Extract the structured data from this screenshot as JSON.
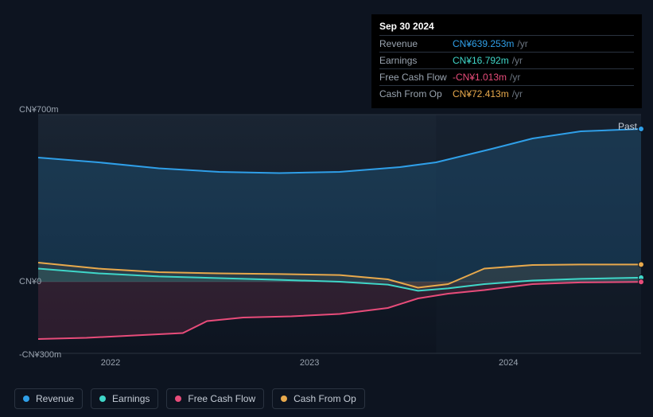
{
  "tooltip": {
    "date": "Sep 30 2024",
    "rows": [
      {
        "label": "Revenue",
        "value": "CN¥639.253m",
        "unit": "/yr",
        "color": "#2f9fe8"
      },
      {
        "label": "Earnings",
        "value": "CN¥16.792m",
        "unit": "/yr",
        "color": "#3fd6c8"
      },
      {
        "label": "Free Cash Flow",
        "value": "-CN¥1.013m",
        "unit": "/yr",
        "color": "#e84c7a"
      },
      {
        "label": "Cash From Op",
        "value": "CN¥72.413m",
        "unit": "/yr",
        "color": "#e8a94c"
      }
    ]
  },
  "chart": {
    "type": "area",
    "background_color": "#0d1420",
    "plot_bg_gradient_top": "#1a2533",
    "plot_bg_gradient_bottom": "#0d1420",
    "grid_color": "#2a3340",
    "x_axis": {
      "ticks": [
        {
          "label": "2022",
          "pos": 0.12
        },
        {
          "label": "2023",
          "pos": 0.45
        },
        {
          "label": "2024",
          "pos": 0.78
        }
      ]
    },
    "y_axis": {
      "ticks": [
        {
          "label": "CN¥700m",
          "value": 700
        },
        {
          "label": "CN¥0",
          "value": 0
        },
        {
          "label": "-CN¥300m",
          "value": -300
        }
      ],
      "min": -300,
      "max": 700
    },
    "past_label": "Past",
    "marker_x": 1.0,
    "series": [
      {
        "name": "Revenue",
        "color": "#2f9fe8",
        "fill_opacity": 0.18,
        "data": [
          [
            0.0,
            520
          ],
          [
            0.1,
            500
          ],
          [
            0.2,
            475
          ],
          [
            0.3,
            460
          ],
          [
            0.4,
            455
          ],
          [
            0.5,
            460
          ],
          [
            0.6,
            480
          ],
          [
            0.66,
            500
          ],
          [
            0.75,
            555
          ],
          [
            0.82,
            600
          ],
          [
            0.9,
            630
          ],
          [
            1.0,
            640
          ]
        ]
      },
      {
        "name": "Cash From Op",
        "color": "#e8a94c",
        "fill_opacity": 0.1,
        "data": [
          [
            0.0,
            80
          ],
          [
            0.1,
            55
          ],
          [
            0.2,
            40
          ],
          [
            0.3,
            35
          ],
          [
            0.4,
            32
          ],
          [
            0.5,
            28
          ],
          [
            0.58,
            10
          ],
          [
            0.63,
            -25
          ],
          [
            0.68,
            -10
          ],
          [
            0.74,
            55
          ],
          [
            0.82,
            70
          ],
          [
            0.9,
            72
          ],
          [
            1.0,
            72
          ]
        ]
      },
      {
        "name": "Earnings",
        "color": "#3fd6c8",
        "fill_opacity": 0.1,
        "data": [
          [
            0.0,
            55
          ],
          [
            0.1,
            35
          ],
          [
            0.2,
            22
          ],
          [
            0.3,
            15
          ],
          [
            0.4,
            8
          ],
          [
            0.5,
            0
          ],
          [
            0.58,
            -12
          ],
          [
            0.63,
            -38
          ],
          [
            0.68,
            -28
          ],
          [
            0.74,
            -10
          ],
          [
            0.82,
            5
          ],
          [
            0.9,
            12
          ],
          [
            1.0,
            17
          ]
        ]
      },
      {
        "name": "Free Cash Flow",
        "color": "#e84c7a",
        "fill_opacity": 0.14,
        "data": [
          [
            0.0,
            -240
          ],
          [
            0.08,
            -235
          ],
          [
            0.16,
            -225
          ],
          [
            0.24,
            -215
          ],
          [
            0.28,
            -165
          ],
          [
            0.34,
            -150
          ],
          [
            0.42,
            -145
          ],
          [
            0.5,
            -135
          ],
          [
            0.58,
            -110
          ],
          [
            0.63,
            -70
          ],
          [
            0.68,
            -50
          ],
          [
            0.74,
            -35
          ],
          [
            0.82,
            -10
          ],
          [
            0.9,
            -3
          ],
          [
            1.0,
            -1
          ]
        ]
      }
    ]
  },
  "legend": [
    {
      "label": "Revenue",
      "color": "#2f9fe8"
    },
    {
      "label": "Earnings",
      "color": "#3fd6c8"
    },
    {
      "label": "Free Cash Flow",
      "color": "#e84c7a"
    },
    {
      "label": "Cash From Op",
      "color": "#e8a94c"
    }
  ]
}
